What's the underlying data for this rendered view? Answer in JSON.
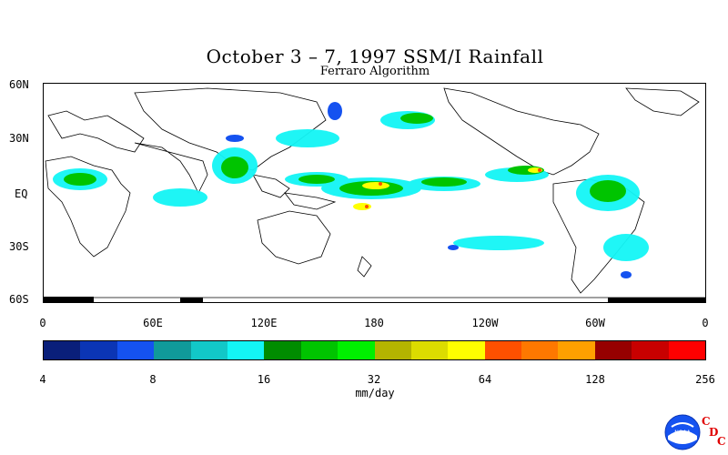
{
  "header": {
    "title": "October 3 – 7, 1997 SSM/I Rainfall",
    "subtitle": "Ferraro Algorithm"
  },
  "map": {
    "lat_labels": [
      "60N",
      "30N",
      "EQ",
      "30S",
      "60S"
    ],
    "lon_labels": [
      "0",
      "60E",
      "120E",
      "180",
      "120W",
      "60W",
      "0"
    ]
  },
  "colorbar": {
    "labels": [
      "4",
      "8",
      "16",
      "32",
      "64",
      "128",
      "256"
    ],
    "units": "mm/day",
    "colors": [
      "#0a1f7a",
      "#0b35b5",
      "#1552f0",
      "#109a9a",
      "#12c8c8",
      "#13f5f5",
      "#008c00",
      "#00c400",
      "#00f000",
      "#b4b400",
      "#dcdc00",
      "#ffff00",
      "#ff5000",
      "#ff7800",
      "#ffa000",
      "#960000",
      "#c80000",
      "#ff0000"
    ]
  },
  "logo": {
    "noaa": "NOAA",
    "cdc_letters": [
      "C",
      "D",
      "C"
    ]
  }
}
